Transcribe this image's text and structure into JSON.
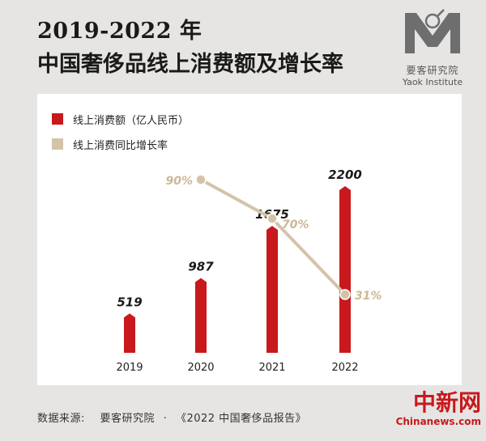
{
  "header": {
    "title_year": "2019-2022 年",
    "title_main": "中国奢侈品线上消费额及增长率"
  },
  "logo": {
    "name_cn": "要客研究院",
    "name_en": "Yaok Institute"
  },
  "colors": {
    "bar": "#c8191c",
    "line": "#d3c4a8",
    "point_label": "#cbb894"
  },
  "legend": [
    {
      "label": "线上消费额（亿人民币）",
      "color": "#c8191c"
    },
    {
      "label": "线上消费同比增长率",
      "color": "#d3c4a8"
    }
  ],
  "chart_data": {
    "type": "bar",
    "categories": [
      "2019",
      "2020",
      "2021",
      "2022"
    ],
    "series": [
      {
        "name": "线上消费额（亿人民币）",
        "type": "bar",
        "values": [
          519,
          987,
          1675,
          2200
        ]
      },
      {
        "name": "线上消费同比增长率",
        "type": "line",
        "x": [
          "2020",
          "2021",
          "2022"
        ],
        "values": [
          90,
          70,
          31
        ],
        "labels": [
          "90%",
          "70%",
          "31%"
        ]
      }
    ],
    "bar_labels": [
      "519",
      "987",
      "1675",
      "2200"
    ],
    "y_max": 2200,
    "rate_range": [
      31,
      90
    ]
  },
  "footer": {
    "source_label": "数据来源:",
    "source_org": "要客研究院",
    "source_sep": "·",
    "source_report": "《2022 中国奢侈品报告》"
  },
  "watermark": {
    "cn": "中新网",
    "en": "Chinanews.com"
  }
}
